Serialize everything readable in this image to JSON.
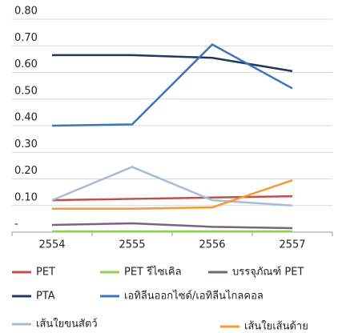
{
  "chart_data": {
    "type": "line",
    "categories": [
      "2554",
      "2555",
      "2556",
      "2557"
    ],
    "series": [
      {
        "name": "PET",
        "color": "#c0504d",
        "values": [
          0.12,
          0.125,
          0.13,
          0.135
        ]
      },
      {
        "name": "PET รีไซเคิล",
        "color": "#92d050",
        "values": [
          0.003,
          0.003,
          0.003,
          0.003
        ]
      },
      {
        "name": "บรรจุภัณฑ์ PET",
        "color": "#7f6084",
        "values": [
          0.027,
          0.033,
          0.02,
          0.015
        ]
      },
      {
        "name": "PTA",
        "color": "#1f3864",
        "values": [
          0.665,
          0.665,
          0.655,
          0.605
        ]
      },
      {
        "name": "เอทิลีนออกไซด์/เอทิลีนไกลคอล",
        "color": "#3e75b8",
        "values": [
          0.4,
          0.405,
          0.705,
          0.54
        ]
      },
      {
        "name": "เส้นใยขนสัตว์",
        "color": "#a6bcd9",
        "values": [
          0.12,
          0.245,
          0.12,
          0.1
        ]
      },
      {
        "name": "เส้นใยเส้นด้าย",
        "color": "#f79a2e",
        "values": [
          0.088,
          0.088,
          0.093,
          0.195
        ]
      }
    ],
    "ylim": [
      0,
      0.8
    ],
    "yticks": [
      {
        "value": 0,
        "label": "-"
      },
      {
        "value": 0.1,
        "label": "0.10"
      },
      {
        "value": 0.2,
        "label": "0.20"
      },
      {
        "value": 0.3,
        "label": "0.30"
      },
      {
        "value": 0.4,
        "label": "0.40"
      },
      {
        "value": 0.5,
        "label": "0.50"
      },
      {
        "value": 0.6,
        "label": "0.60"
      },
      {
        "value": 0.7,
        "label": "0.70"
      },
      {
        "value": 0.8,
        "label": "0.80"
      }
    ],
    "grid": true
  }
}
